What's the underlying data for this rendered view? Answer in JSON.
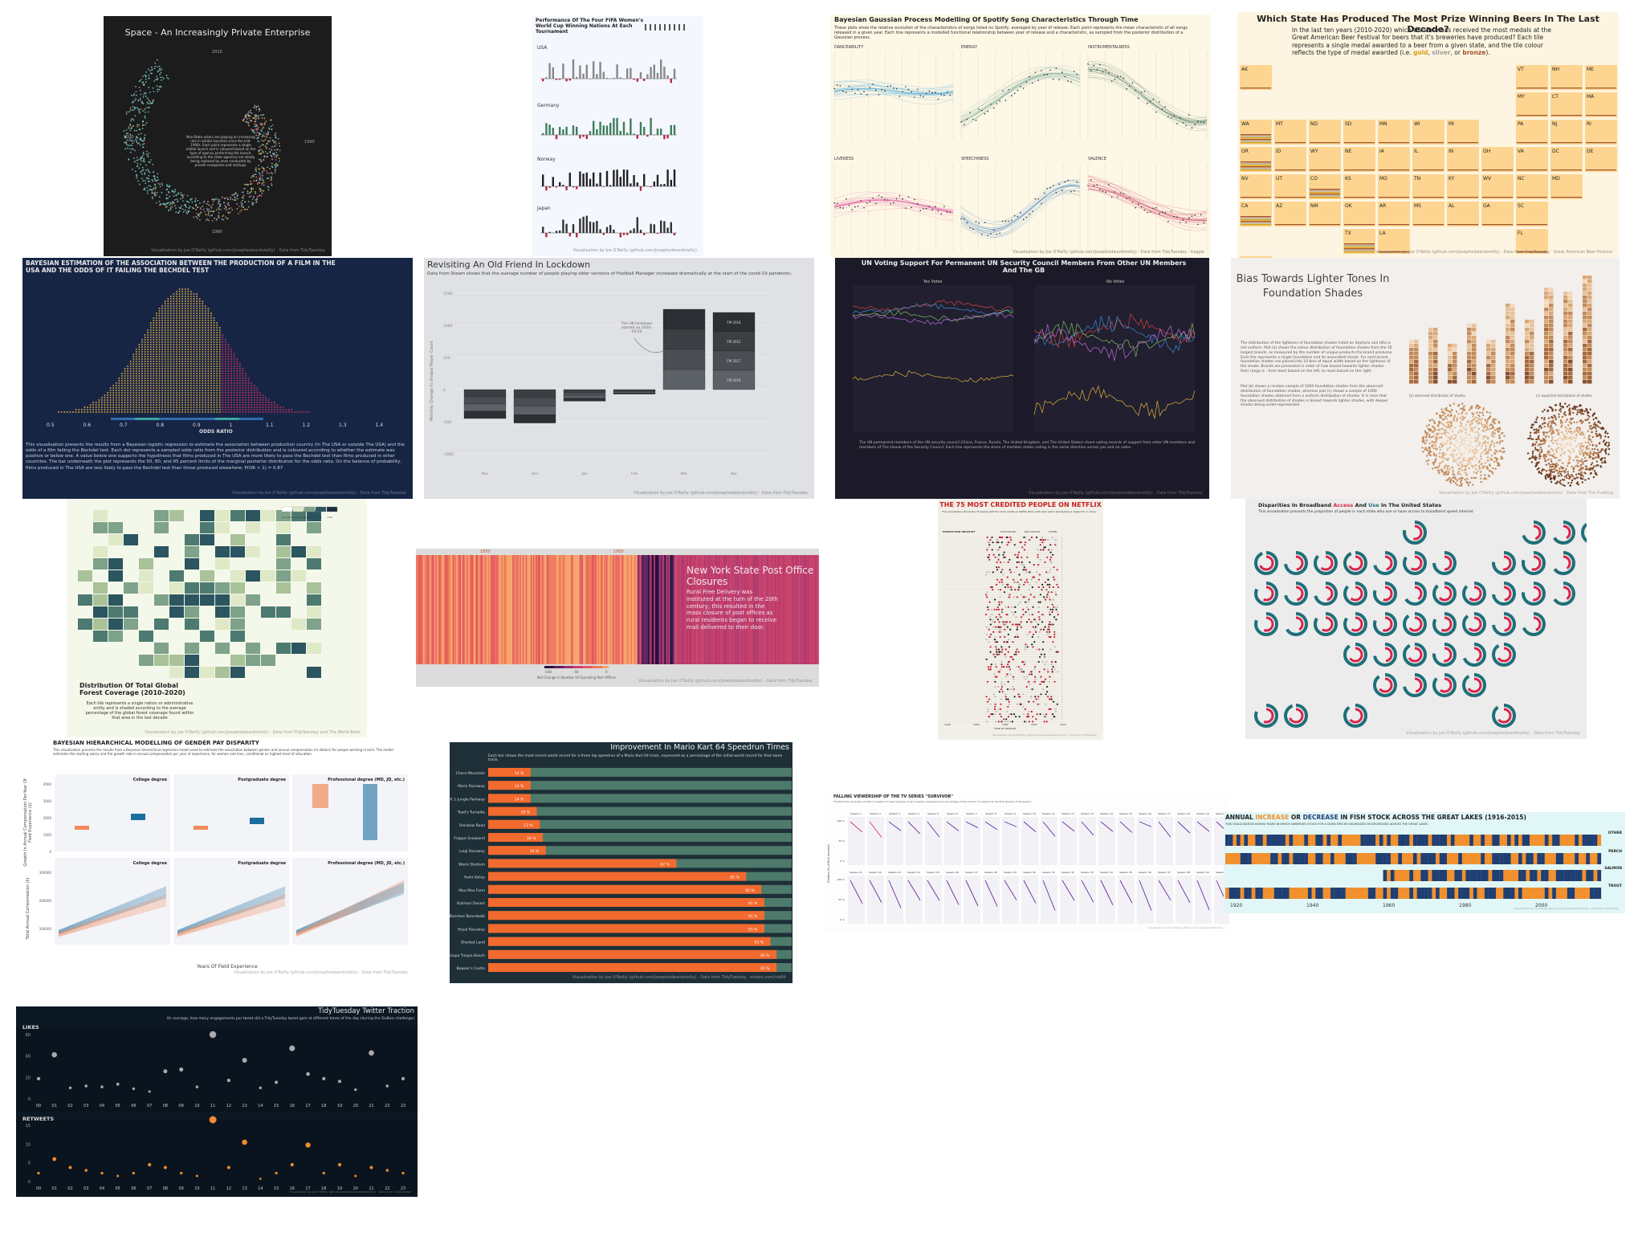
{
  "colors": {
    "space_bg": "#1c1c1c",
    "bechdel_bg": "#172545",
    "gold": "#c79a45",
    "teal": "#3aa6a0",
    "fm_bg": "#dfe1e4",
    "un_bg": "#1c1a28",
    "found_bg": "#f2efec",
    "forest_bg": "#f4f8ea",
    "post_bg": "#dcdcdc",
    "netflix_bg": "#f1efe8",
    "broadband_bg": "#ececec",
    "gender_bg": "#ffffff",
    "kart_bg": "#1e2f37",
    "kart_orange": "#f26a2e",
    "kart_green": "#4d7a6a",
    "survivor_bg": "#fdfdfd",
    "fish_bg": "#e1f6f6",
    "fish_orange": "#f1902d",
    "fish_blue": "#1f3f73",
    "twitter_bg": "#0c1824",
    "twitter_orange": "#f08a30"
  },
  "space": {
    "title": "Space - An Increasingly Private Enterprise",
    "center_text": "Non-State actors are playing an increasing role in orbital launches since the mid-1990s. Each point represents a single orbital launch and is coloured based on the type of agency performing the launch, according to the state agencies are slowly being replaced by ones conducted by private companies and startups.",
    "year_labels": [
      "2010",
      "2000",
      "1990",
      "1980"
    ],
    "caption": "Visualisation by Joe O'Reilly (github.com/josephedwardoreilly) · Data from TidyTuesday"
  },
  "fifa": {
    "title": "Performance Of The Four FIFA Women's World Cup Winning Nations At Each Tournament",
    "nations": [
      "USA",
      "Germany",
      "Norway",
      "Japan"
    ],
    "caption": "Visualisation by Joe O'Reilly (github.com/josephedwardoreilly)"
  },
  "spotify": {
    "title": "Bayesian Gaussian Process Modelling Of Spotify Song Characteristics Through Time",
    "subtitle": "These plots show the relative evolution of the characteristics of songs listed on Spotify, averaged by year of release. Each point represents the mean characteristic of all songs released in a given year. Each line represents a modelled functional relationship between year of release and a characteristic, as sampled from the posterior distribution of a Gaussian process.",
    "panels": [
      "DANCEABILITY",
      "ENERGY",
      "INSTRUMENTALNESS",
      "LIVENESS",
      "SPEECHINESS",
      "VALENCE"
    ],
    "panel_colors": [
      "#2b9bd6",
      "#5f9a8a",
      "#3d6e55",
      "#e0449b",
      "#3a7fc1",
      "#c8204c"
    ],
    "caption": "Visualisation by Joe O'Reilly (github.com/josephedwardoreilly) · Data from TidyTuesday · Kaggle"
  },
  "beers": {
    "title": "Which State Has Produced The Most Prize Winning Beers In The Last Decade?",
    "subtitle_before": "In the last ten years (2010-2020) which US state has received the most medals at the Great American Beer Festival for beers that it's breweries have produced? Each tile represents a single medal awarded to a beer from a given state, and the tile colour reflects the type of medal awarded (i.e. ",
    "gold": "gold",
    "sep1": ", ",
    "silver": "silver",
    "sep2": ", or ",
    "bronze": "bronze",
    "end": ").",
    "states": [
      "AK",
      "VT",
      "NH",
      "ME",
      "MY",
      "CT",
      "MA",
      "WA",
      "MT",
      "ND",
      "SD",
      "MN",
      "WI",
      "MI",
      "PA",
      "NJ",
      "RI",
      "OR",
      "ID",
      "WY",
      "NE",
      "IA",
      "IL",
      "IN",
      "OH",
      "VA",
      "DC",
      "DE",
      "NV",
      "UT",
      "CO",
      "KS",
      "MO",
      "TN",
      "KY",
      "WV",
      "NC",
      "MD",
      "CA",
      "AZ",
      "NM",
      "OK",
      "AR",
      "MS",
      "AL",
      "GA",
      "SC",
      "TX",
      "LA",
      "FL",
      "HI"
    ],
    "caption": "Visualisation by Joe O'Reilly (github.com/josephedwardoreilly) · Data from TidyTuesday · Great American Beer Festival"
  },
  "bechdel": {
    "title": "BAYESIAN ESTIMATION OF THE ASSOCIATION BETWEEN THE PRODUCTION OF A FILM IN THE USA AND THE ODDS OF IT FAILING THE BECHDEL TEST",
    "axis_title": "ODDS RATIO",
    "ticks": [
      "0.5",
      "0.6",
      "0.7",
      "0.8",
      "0.9",
      "1",
      "1.1",
      "1.2",
      "1.3",
      "1.4"
    ],
    "body": "This visualisation presents the results from a Bayesian logistic regression to estimate the association between production country (In The USA or outside The USA) and the odds of a film failing the Bechdel test. Each dot represents a sampled odds ratio from the posterior distribution and is coloured according to whether the estimate was positive or below one. A value below one supports the hypothesis that films produced in The USA are more likely to pass the Bechdel test than films produced in other countries. The bar underneath the plot represents the 50, 80, and 95 percent limits of the marginal posterior distribution for the odds ratio. On the balance of probability, films produced in The USA are less likely to pass the Bechdel test than those produced elsewhere; P(OR > 1) = 0.87",
    "caption": "Visualisation by Joe O'Reilly (github.com/josephedwardoreilly) · Data from TidyTuesday"
  },
  "football_manager": {
    "title": "Revisiting An Old Friend In Lockdown",
    "subtitle": "Data from Steam shows that the average number of people playing older versions of Football Manager increased dramatically at the start of the covid-19 pandemic.",
    "ylabel": "Monthly Change In Unique Player Count",
    "yticks": [
      "1500",
      "1000",
      "500",
      "0",
      "-500",
      "-1000"
    ],
    "months": [
      "Nov",
      "Dec",
      "Jan",
      "Feb",
      "Mar",
      "Apr"
    ],
    "versions": [
      "FM 2016",
      "FM 2015",
      "FM 2017",
      "FM 2018"
    ],
    "annotation": "The UK lockdown started on 2020-03-23",
    "caption": "Visualisation by Joe O'Reilly (github.com/josephedwardoreilly) · Data from TidyTuesday"
  },
  "un": {
    "title": "UN Voting Support For Permanent UN Security Council Members From Other UN Members And The GB",
    "panels": [
      "Yes Votes",
      "No Votes"
    ],
    "ylabel": "% Of member states that voted in the same direction",
    "lines": [
      "#d6453b",
      "#3a8bd0",
      "#e3b336",
      "#7fbf5a",
      "#c46ee0"
    ],
    "body": "The UN permanent members of the UN security council (China, France, Russia, The United Kingdom, and The United States) share voting records of support from other UN members and members of The House of the Security Council. Each line represents the share of member states voting in the same direction across yes and no votes.",
    "caption": "Visualisation by Joe O'Reilly (github.com/josephedwardoreilly) · Data from TidyTuesday"
  },
  "foundation": {
    "title": "Bias Towards Lighter Tones In Foundation Shades",
    "body1": "The distribution of the lightness of foundation shades listed on Sephora and Ulta is not uniform. Plot (a) shows the colour distribution of foundation shades from the 10 largest brands, as measured by the number of unique products the brand produces. Each tile represents a single foundation and its associated shade. For each brand, foundation shades are placed into 10 bins of equal width based on the lightness of the shade. Brands are presented in order of how biased towards lighter shades their range is - from least biased on the left, to most biased on the right.",
    "body2": "Plot (b) shows a random sample of 1000 foundation shades from the observed distribution of foundation shades, whereas plot (c) shows a sample of 1000 foundation shades obtained from a uniform distribution of shades. It is clear that the observed distribution of shades is biased towards lighter shades, with deeper shades being under-represented.",
    "label_b": "(b) observed distribution of shades",
    "label_c": "(c) expected distribution of shades",
    "caption": "Visualisation by Joe O'Reilly (github.com/josephedwardoreilly) · Data from The Pudding"
  },
  "forest": {
    "title": "Distribution Of Total Global Forest Coverage (2010-2020)",
    "body": "Each tile represents a single nation or administrative entity and is shaded according to the average percentage of the global forest coverage found within that area in the last decade",
    "legend": [
      "0-0.01%",
      "0.01-0.1%",
      "0.1-1%",
      "1-5%",
      ">5%"
    ],
    "legend_row2": [
      "0.01% - 0.05%",
      "0.1 - 1%",
      ">1%"
    ],
    "caption": "Visualisation by Joe O'Reilly (github.com/josephedwardoreilly) · Data from TidyTuesday and The World Bank"
  },
  "post": {
    "title": "New York State Post Office Closures",
    "body": "Rural Free Delivery was instituted at the turn of the 20th century; this resulted in the mass closure of post offices as rural residents began to receive mail delivered to their door.",
    "year_left": "1850",
    "year_right": "1900",
    "legend_ticks": [
      "-100",
      "-50",
      "0"
    ],
    "legend_title": "Net Change In Number Of Operating Post Offices",
    "caption": "Visualisation by Joe O'Reilly (github.com/josephedwardoreilly) · Data from TidyTuesday"
  },
  "netflix": {
    "title": "THE 75 MOST CREDITED PEOPLE ON NETFLIX",
    "subtitle": "This visualisation shows the 75 people with the most credits on Netflix titles, with each point representing a single film or show.",
    "legend_title": "PRODUCTION INDUSTRY",
    "legend": [
      "HOLLYWOOD",
      "BOLLYWOOD",
      "OTHER"
    ],
    "xticks": [
      "1940",
      "1960",
      "1980",
      "2000",
      "2020"
    ],
    "xlabel": "YEAR OF RELEASE",
    "caption": "Visualisation by Joe O'Reilly (github.com/josephedwardoreilly) · Data from TidyTuesday"
  },
  "broadband": {
    "title_a": "Disparities In Broadband ",
    "title_access": "Access",
    "title_b": " And ",
    "title_use": "Use",
    "title_c": " In The United States",
    "subtitle": "This visualisation presents the proportion of people in each state who use or have access to broadband speed internet",
    "caption": "Visualisation by Joe O'Reilly (github.com/josephedwardoreilly) · Data from TidyTuesday"
  },
  "gender": {
    "title": "BAYESIAN HIERARCHICAL MODELLING OF GENDER PAY DISPARITY",
    "body": "This visualisation presents the results from a Bayesian hierarchical regression model used to estimate the association between gender and annual compensation (in dollars) for people working in tech. The model estimates the starting salary and the growth rate in annual compensation per year of experience, for women and men, conditional on highest level of education.",
    "facets": [
      "College degree",
      "Postgraduate degree",
      "Professional degree (MD, JD, etc.)"
    ],
    "ylabel_top": "Growth In Annual Compensation Per-Year Of Field Experience ($)",
    "ylabel_bottom": "Total Annual Compensation ($)",
    "yticks_top": [
      "4000",
      "3000",
      "2000",
      "1000",
      "0"
    ],
    "yticks_bottom": [
      "300000",
      "200000",
      "100000"
    ],
    "xticks": [
      "0",
      "10",
      "20"
    ],
    "xlabel": "Years Of Field Experience",
    "caption": "Visualisation by Joe O'Reilly (github.com/josephedwardoreilly) · Data from TidyTuesday"
  },
  "kart": {
    "title": "Improvement In Mario Kart 64 Speedrun Times",
    "subtitle": "Each bar shows the most recent world record for a three lap speedrun of a Mario Kart 64 track, expressed as a percentage of the initial world record for that same track.",
    "caption": "Visualisation by Joe O'Reilly (github.com/josephedwardoreilly) · Data from TidyTuesday · mkwrs.com/mk64"
  },
  "survivor": {
    "title": "FALLING VIEWERSHIP OF THE TV SERIES \"SURVIVOR\"",
    "subtitle": "The first lines show the number of viewers for each episode of each season, expressed as a percentage of the number of viewers for the first episode of the season.",
    "ylabel": "Viewers (% of first episode)",
    "row1_seasons": [
      "Season 1",
      "Season 2",
      "Season 3",
      "Season 4",
      "Season 5",
      "Season 6",
      "Season 7",
      "Season 8",
      "Season 9",
      "Season 10",
      "Season 11",
      "Season 12",
      "Season 13",
      "Season 14",
      "Season 15",
      "Season 16",
      "Season 17",
      "Season 18",
      "Season 19",
      "Season 20"
    ],
    "row2_seasons": [
      "Season 21",
      "Season 22",
      "Season 23",
      "Season 24",
      "Season 25",
      "Season 26",
      "Season 27",
      "Season 28",
      "Season 29",
      "Season 30",
      "Season 31",
      "Season 32",
      "Season 33",
      "Season 34",
      "Season 35",
      "Season 36",
      "Season 37",
      "Season 38",
      "Season 39",
      "Season 40"
    ],
    "yticks": [
      "100 %",
      "50 %",
      "0 %"
    ],
    "caption": "Visualisation by Joe O'Reilly (github.com/josephedwardoreilly)"
  },
  "fish": {
    "title_a": "ANNUAL ",
    "title_increase": "INCREASE",
    "title_b": " OR ",
    "title_decrease": "DECREASE",
    "title_c": " IN FISH STOCK ACROSS THE GREAT LAKES (1916-2015)",
    "subtitle": "THIS VISUALISATION SHOWS YEARS IN WHICH OBSERVED STOCK FOR A GIVEN SPECIES INCREASED OR DECREASED ACROSS THE GREAT LAKES",
    "species": [
      "OTHER",
      "PERCH",
      "SALMON",
      "TROUT"
    ],
    "ticks": [
      "1920",
      "1940",
      "1960",
      "1980",
      "2000"
    ],
    "caption": "Visualisation by Joe O'Reilly (github.com/josephedwardoreilly) · Data from TidyTuesday"
  },
  "twitter": {
    "title": "TidyTuesday Twitter Traction",
    "subtitle": "On average, how many engagements per tweet did a TidyTuesday tweet gain at different times of the day (during the DuBois challenge)",
    "panel_likes": "LIKES",
    "panel_retweets": "RETWEETS",
    "hours": [
      "00",
      "01",
      "02",
      "03",
      "04",
      "05",
      "06",
      "07",
      "08",
      "09",
      "10",
      "11",
      "12",
      "13",
      "14",
      "15",
      "16",
      "17",
      "18",
      "19",
      "20",
      "21",
      "22",
      "23"
    ],
    "likes_yticks": [
      "60",
      "40",
      "20",
      "0"
    ],
    "retweets_yticks": [
      "15",
      "10",
      "5",
      "0"
    ],
    "caption": "Visualisation by Joe O'Reilly (github.com/josephedwardoreilly) · Data from TidyTuesday"
  },
  "chart_data": [
    {
      "type": "bar",
      "title": "Improvement In Mario Kart 64 Speedrun Times",
      "categories": [
        "Choco Mountain",
        "Mario Raceway",
        "D.K.'s Jungle Parkway",
        "Toad's Turnpike",
        "Rainbow Road",
        "Frappe Snowland",
        "Luigi Raceway",
        "Wario Stadium",
        "Yoshi Valley",
        "Moo Moo Farm",
        "Kalimari Desert",
        "Banshee Boardwalk",
        "Royal Raceway",
        "Sherbet Land",
        "Koopa Troopa Beach",
        "Bowser's Castle"
      ],
      "value_labels": [
        "14 %",
        "14 %",
        "14 %",
        "16 %",
        "17 %",
        "18 %",
        "19 %",
        "62 %",
        "85 %",
        "90 %",
        "91 %",
        "91 %",
        "91 %",
        "93 %",
        "95 %",
        "95 %"
      ],
      "values": [
        14,
        14,
        14,
        16,
        17,
        18,
        19,
        62,
        85,
        90,
        91,
        91,
        91,
        93,
        95,
        95
      ],
      "ylim": [
        0,
        100
      ]
    },
    {
      "type": "scatter",
      "title": "TidyTuesday Twitter Traction",
      "x": [
        "00",
        "01",
        "02",
        "03",
        "04",
        "05",
        "06",
        "07",
        "08",
        "09",
        "10",
        "11",
        "12",
        "13",
        "14",
        "15",
        "16",
        "17",
        "18",
        "19",
        "20",
        "21",
        "22",
        "23"
      ],
      "series": [
        {
          "name": "LIKES",
          "values": [
            22,
            48,
            12,
            14,
            13,
            16,
            11,
            8,
            30,
            32,
            13,
            70,
            20,
            42,
            12,
            18,
            55,
            27,
            22,
            19,
            10,
            50,
            14,
            22
          ]
        },
        {
          "name": "RETWEETS",
          "values": [
            3,
            8,
            5,
            4,
            3,
            2,
            3,
            6,
            5,
            3,
            2,
            22,
            5,
            14,
            1,
            3,
            6,
            13,
            3,
            6,
            2,
            5,
            4,
            3
          ]
        }
      ]
    },
    {
      "type": "bar",
      "title": "Revisiting An Old Friend In Lockdown",
      "categories": [
        "Nov",
        "Dec",
        "Jan",
        "Feb",
        "Mar",
        "Apr"
      ],
      "series": [
        {
          "name": "total",
          "values": [
            -450,
            -520,
            -180,
            -70,
            1250,
            1200
          ]
        }
      ],
      "ylim": [
        -1000,
        1500
      ]
    }
  ]
}
